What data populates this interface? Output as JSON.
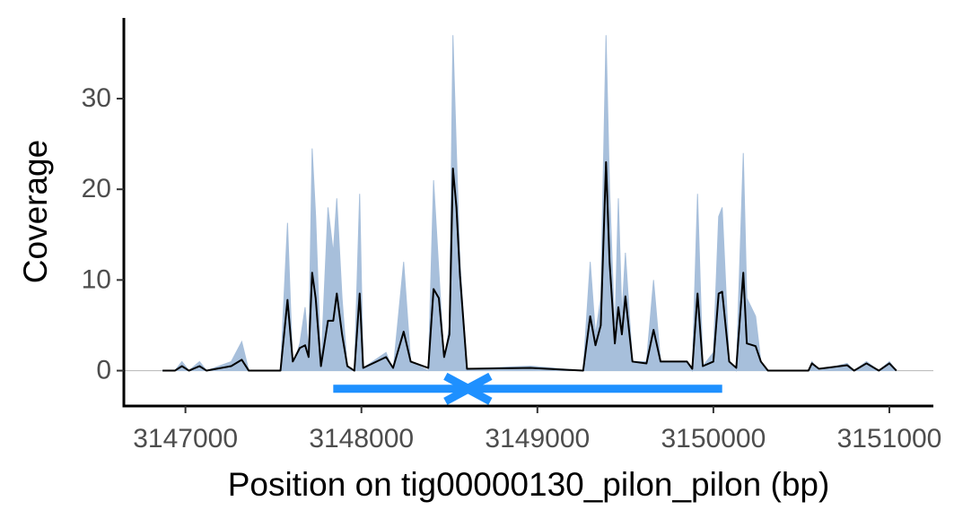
{
  "chart_data": {
    "type": "coverage",
    "x_label": "Position on tig00000130_pilon_pilon (bp)",
    "y_label": "Coverage",
    "xlim": [
      3146650,
      3151250
    ],
    "ylim": [
      -3.9,
      38.9
    ],
    "xticks": [
      3147000,
      3148000,
      3149000,
      3150000,
      3151000
    ],
    "yticks": [
      0,
      10,
      20,
      30
    ],
    "hline": 0,
    "hline_color": "#bebebe",
    "x": [
      3146870,
      3146940,
      3146980,
      3147020,
      3147080,
      3147120,
      3147260,
      3147320,
      3147360,
      3147540,
      3147580,
      3147610,
      3147650,
      3147680,
      3147700,
      3147720,
      3147740,
      3147770,
      3147810,
      3147840,
      3147860,
      3147890,
      3147920,
      3147960,
      3147990,
      3148010,
      3148140,
      3148180,
      3148240,
      3148280,
      3148380,
      3148410,
      3148440,
      3148470,
      3148500,
      3148520,
      3148540,
      3148560,
      3148600,
      3148960,
      3149260,
      3149300,
      3149330,
      3149360,
      3149390,
      3149410,
      3149440,
      3149460,
      3149480,
      3149500,
      3149540,
      3149620,
      3149660,
      3149700,
      3149850,
      3149880,
      3149910,
      3149940,
      3150000,
      3150030,
      3150050,
      3150090,
      3150130,
      3150170,
      3150190,
      3150240,
      3150270,
      3150310,
      3150540,
      3150560,
      3150600,
      3150760,
      3150800,
      3150870,
      3150940,
      3151000,
      3151040
    ],
    "series": [
      {
        "kind": "area",
        "color": "#a7bfdb",
        "values": [
          0,
          0,
          1,
          0,
          1,
          0,
          1,
          3.2,
          0,
          0,
          16.3,
          0.5,
          3,
          7,
          2,
          24.5,
          17,
          0.5,
          18,
          13,
          19,
          8,
          0.3,
          0,
          19.5,
          0.3,
          2,
          0,
          12,
          1,
          0,
          21,
          11,
          1,
          5,
          37,
          24,
          12,
          0.2,
          0.5,
          0,
          12,
          4,
          8,
          37,
          20,
          4,
          19,
          6,
          13,
          1,
          1,
          10,
          1,
          1,
          0,
          19.5,
          0.5,
          2,
          17,
          18,
          1,
          0,
          24,
          8,
          6,
          1,
          0,
          0,
          1,
          0,
          0.8,
          0,
          1,
          0,
          1,
          0
        ]
      },
      {
        "kind": "line",
        "color": "#000000",
        "values": [
          0,
          0,
          0.5,
          0,
          0.5,
          0,
          0.5,
          1.2,
          0,
          0,
          7.8,
          1,
          2.5,
          2.8,
          1.5,
          10.8,
          8,
          0.5,
          5.5,
          5.5,
          8.5,
          4,
          0.5,
          0,
          8.5,
          0.3,
          1.5,
          0.3,
          4.3,
          1,
          0.3,
          9,
          8,
          1.5,
          4,
          22.3,
          18,
          10.5,
          0.2,
          0.3,
          0,
          6,
          2.8,
          5,
          23,
          12,
          3,
          7,
          4,
          8.2,
          1,
          0.8,
          4.5,
          1,
          1,
          0.2,
          8.5,
          0.5,
          1,
          8.5,
          8.7,
          1,
          0.3,
          10.8,
          3,
          2.7,
          1,
          0,
          0,
          0.8,
          0.2,
          0.6,
          0,
          0.8,
          0,
          0.8,
          0
        ]
      }
    ],
    "features": [
      {
        "start": 3147840,
        "end": 3148610,
        "y": -2,
        "color": "#1e90ff"
      },
      {
        "start": 3150050,
        "end": 3148600,
        "y": -2,
        "color": "#1e90ff"
      }
    ]
  }
}
